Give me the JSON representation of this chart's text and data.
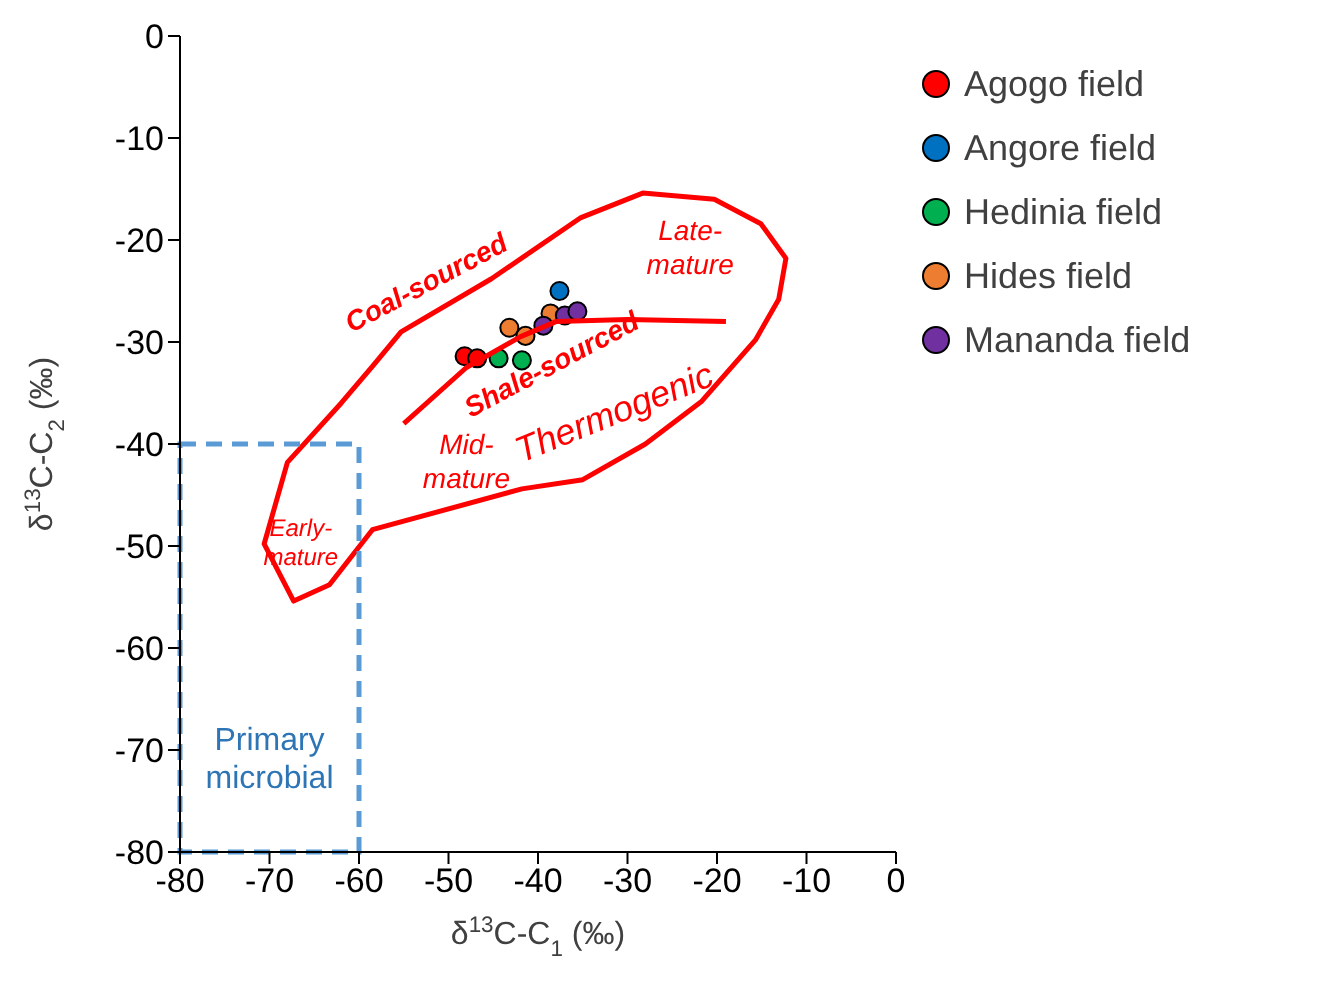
{
  "chart_data": {
    "type": "scatter",
    "xlabel": "δ$^{13}$C-C$_{1}$ (‰)",
    "ylabel": "δ$^{13}$C-C$_{2}$ (‰)",
    "xlim": [
      -80,
      0
    ],
    "ylim": [
      -80,
      0
    ],
    "xticks": [
      -80,
      -70,
      -60,
      -50,
      -40,
      -30,
      -20,
      -10,
      0
    ],
    "yticks": [
      -80,
      -70,
      -60,
      -50,
      -40,
      -30,
      -20,
      -10,
      0
    ],
    "grid": false,
    "legend": "right",
    "marker": "circle",
    "series": [
      {
        "name": "Agogo field",
        "color": "#ff0000",
        "x": [
          -48.2,
          -46.8
        ],
        "values": [
          -31.4,
          -31.6
        ]
      },
      {
        "name": "Angore field",
        "color": "#0070c0",
        "x": [
          -37.6
        ],
        "values": [
          -25
        ]
      },
      {
        "name": "Hedinia field",
        "color": "#00b050",
        "x": [
          -44.4,
          -41.8
        ],
        "values": [
          -31.6,
          -31.8
        ]
      },
      {
        "name": "Hides field",
        "color": "#ed7d31",
        "x": [
          -43.2,
          -41.4,
          -38.6
        ],
        "values": [
          -28.6,
          -29.4,
          -27.2
        ]
      },
      {
        "name": "Mananda field",
        "color": "#7030a0",
        "x": [
          -39.4,
          -37,
          -35.6
        ],
        "values": [
          -28.4,
          -27.4,
          -27
        ]
      },
      {
        "type": "line",
        "color": "#ff0000",
        "line_style": "solid",
        "marker": "none",
        "x": [
          -55,
          -48,
          -42,
          -38,
          -30,
          -19
        ],
        "values": [
          -38,
          -32.5,
          -29.5,
          -28,
          -27.8,
          -28
        ]
      }
    ],
    "annotations": [
      "Coal-sourced",
      "Shale-sourced",
      "Thermogenic",
      "Late-\nmature",
      "Mid-\nmature",
      "Early-\nmature",
      "Primary\nmicrobial"
    ]
  }
}
